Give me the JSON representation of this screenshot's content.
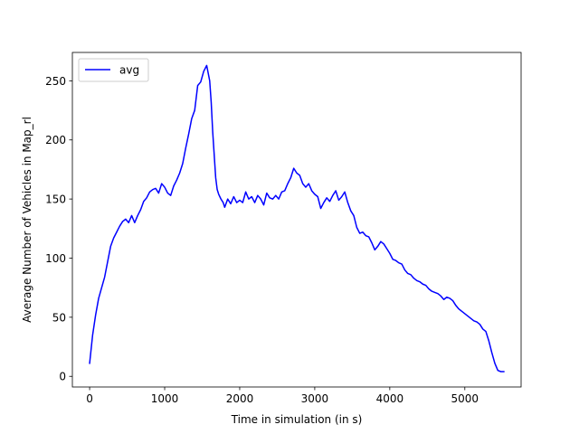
{
  "chart_data": {
    "type": "line",
    "title": "",
    "xlabel": "Time in simulation (in s)",
    "ylabel": "Average Number of Vehicles in Map_rl",
    "xlim": [
      -230,
      5750
    ],
    "ylim": [
      -9,
      274
    ],
    "xticks": [
      0,
      1000,
      2000,
      3000,
      4000,
      5000
    ],
    "yticks": [
      0,
      50,
      100,
      150,
      200,
      250
    ],
    "grid": false,
    "legend_position": "upper-left",
    "series": [
      {
        "name": "avg",
        "color": "#0000ff",
        "x": [
          0,
          40,
          80,
          120,
          160,
          200,
          240,
          280,
          320,
          360,
          400,
          440,
          480,
          520,
          560,
          600,
          640,
          680,
          720,
          760,
          800,
          840,
          880,
          920,
          960,
          1000,
          1040,
          1080,
          1120,
          1160,
          1200,
          1240,
          1280,
          1320,
          1360,
          1400,
          1440,
          1480,
          1520,
          1560,
          1600,
          1620,
          1640,
          1680,
          1700,
          1720,
          1750,
          1780,
          1800,
          1840,
          1880,
          1920,
          1960,
          2000,
          2040,
          2080,
          2120,
          2160,
          2200,
          2240,
          2280,
          2320,
          2360,
          2400,
          2440,
          2480,
          2520,
          2560,
          2600,
          2640,
          2680,
          2720,
          2760,
          2800,
          2840,
          2880,
          2920,
          2960,
          3000,
          3040,
          3080,
          3120,
          3160,
          3200,
          3240,
          3280,
          3320,
          3360,
          3400,
          3440,
          3480,
          3520,
          3560,
          3600,
          3640,
          3680,
          3720,
          3760,
          3800,
          3840,
          3880,
          3920,
          3960,
          4000,
          4040,
          4080,
          4120,
          4160,
          4200,
          4240,
          4280,
          4320,
          4360,
          4400,
          4440,
          4480,
          4520,
          4560,
          4600,
          4640,
          4680,
          4720,
          4760,
          4800,
          4840,
          4880,
          4920,
          4960,
          5000,
          5040,
          5080,
          5120,
          5160,
          5200,
          5240,
          5280,
          5320,
          5360,
          5400,
          5440,
          5480,
          5520
        ],
        "y": [
          11,
          35,
          52,
          66,
          75,
          84,
          97,
          110,
          117,
          122,
          127,
          131,
          133,
          130,
          136,
          130,
          136,
          141,
          148,
          151,
          156,
          158,
          159,
          155,
          163,
          160,
          155,
          153,
          161,
          166,
          172,
          180,
          193,
          205,
          218,
          225,
          246,
          249,
          258,
          263,
          250,
          232,
          207,
          168,
          158,
          154,
          150,
          147,
          143,
          150,
          146,
          152,
          147,
          149,
          147,
          156,
          150,
          152,
          147,
          153,
          150,
          145,
          155,
          151,
          150,
          153,
          150,
          156,
          157,
          163,
          168,
          176,
          172,
          170,
          163,
          160,
          163,
          157,
          154,
          152,
          142,
          147,
          151,
          148,
          153,
          157,
          149,
          152,
          156,
          147,
          140,
          136,
          126,
          121,
          122,
          119,
          118,
          113,
          107,
          110,
          114,
          112,
          108,
          104,
          99,
          98,
          96,
          95,
          90,
          87,
          86,
          83,
          81,
          80,
          78,
          77,
          74,
          72,
          71,
          70,
          68,
          65,
          67,
          66,
          64,
          60,
          57,
          55,
          53,
          51,
          49,
          47,
          46,
          44,
          40,
          38,
          30,
          20,
          11,
          5,
          4,
          4
        ]
      }
    ]
  }
}
